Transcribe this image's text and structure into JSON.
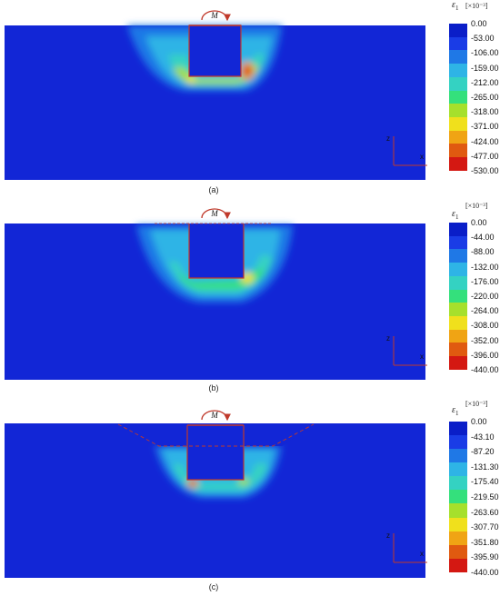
{
  "panels": [
    {
      "caption": "(a)",
      "moment_label": "M",
      "legend": {
        "symbol": "ε",
        "subscript": "1",
        "unit": "[×10⁻³]",
        "ticks": [
          "0.00",
          "-53.00",
          "-106.00",
          "-159.00",
          "-212.00",
          "-265.00",
          "-318.00",
          "-371.00",
          "-424.00",
          "-477.00",
          "-530.00"
        ]
      },
      "axes": {
        "z": "z",
        "x": "x"
      }
    },
    {
      "caption": "(b)",
      "moment_label": "M",
      "legend": {
        "symbol": "ε",
        "subscript": "1",
        "unit": "[×10⁻³]",
        "ticks": [
          "0.00",
          "-44.00",
          "-88.00",
          "-132.00",
          "-176.00",
          "-220.00",
          "-264.00",
          "-308.00",
          "-352.00",
          "-396.00",
          "-440.00"
        ]
      },
      "axes": {
        "z": "z",
        "x": "x"
      }
    },
    {
      "caption": "(c)",
      "moment_label": "M",
      "legend": {
        "symbol": "ε",
        "subscript": "1",
        "unit": "[×10⁻³]",
        "ticks": [
          "0.00",
          "-43.10",
          "-87.20",
          "-131.30",
          "-175.40",
          "-219.50",
          "-263.60",
          "-307.70",
          "-351.80",
          "-395.90",
          "-440.00"
        ]
      },
      "axes": {
        "z": "z",
        "x": "x"
      }
    }
  ],
  "colors": {
    "scale": [
      "#0a1ec8",
      "#1a3ce6",
      "#1f78e6",
      "#2eb4e6",
      "#34d2c2",
      "#34e07c",
      "#a6e02c",
      "#f0e01c",
      "#f0a414",
      "#e05a10",
      "#d41812"
    ],
    "soil": "#1226d6",
    "pile_outline": "#c0392b"
  }
}
